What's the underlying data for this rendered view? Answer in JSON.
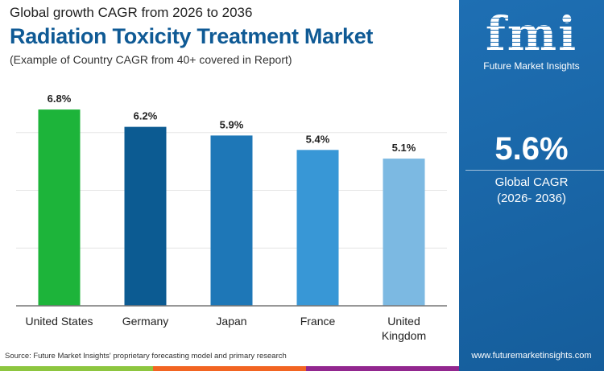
{
  "header": {
    "supertitle": "Global growth CAGR from 2026 to 2036",
    "title": "Radiation Toxicity Treatment Market",
    "subtitle": "(Example of Country CAGR from 40+ covered in Report)"
  },
  "chart_data": {
    "type": "bar",
    "categories": [
      "United States",
      "Germany",
      "Japan",
      "France",
      "United Kingdom"
    ],
    "values": [
      6.8,
      6.2,
      5.9,
      5.4,
      5.1
    ],
    "data_labels": [
      "6.8%",
      "6.2%",
      "5.9%",
      "5.4%",
      "5.1%"
    ],
    "colors": [
      "#1db43a",
      "#0c5b92",
      "#1e77b7",
      "#3897d6",
      "#7cb9e2"
    ],
    "ylim": [
      0,
      7.5
    ],
    "grid": true,
    "gridlines": [
      2,
      4,
      6
    ]
  },
  "source": "Source: Future Market Insights' proprietary forecasting model and primary research",
  "panel": {
    "logo_text": "fmi",
    "logo_subtitle": "Future Market Insights",
    "value": "5.6%",
    "label": "Global CAGR",
    "years": "(2026- 2036)",
    "website": "www.futuremarketinsights.com",
    "bg": "#1a66a8"
  },
  "stripe_colors": [
    "#8dc63f",
    "#f26522",
    "#92278f"
  ]
}
